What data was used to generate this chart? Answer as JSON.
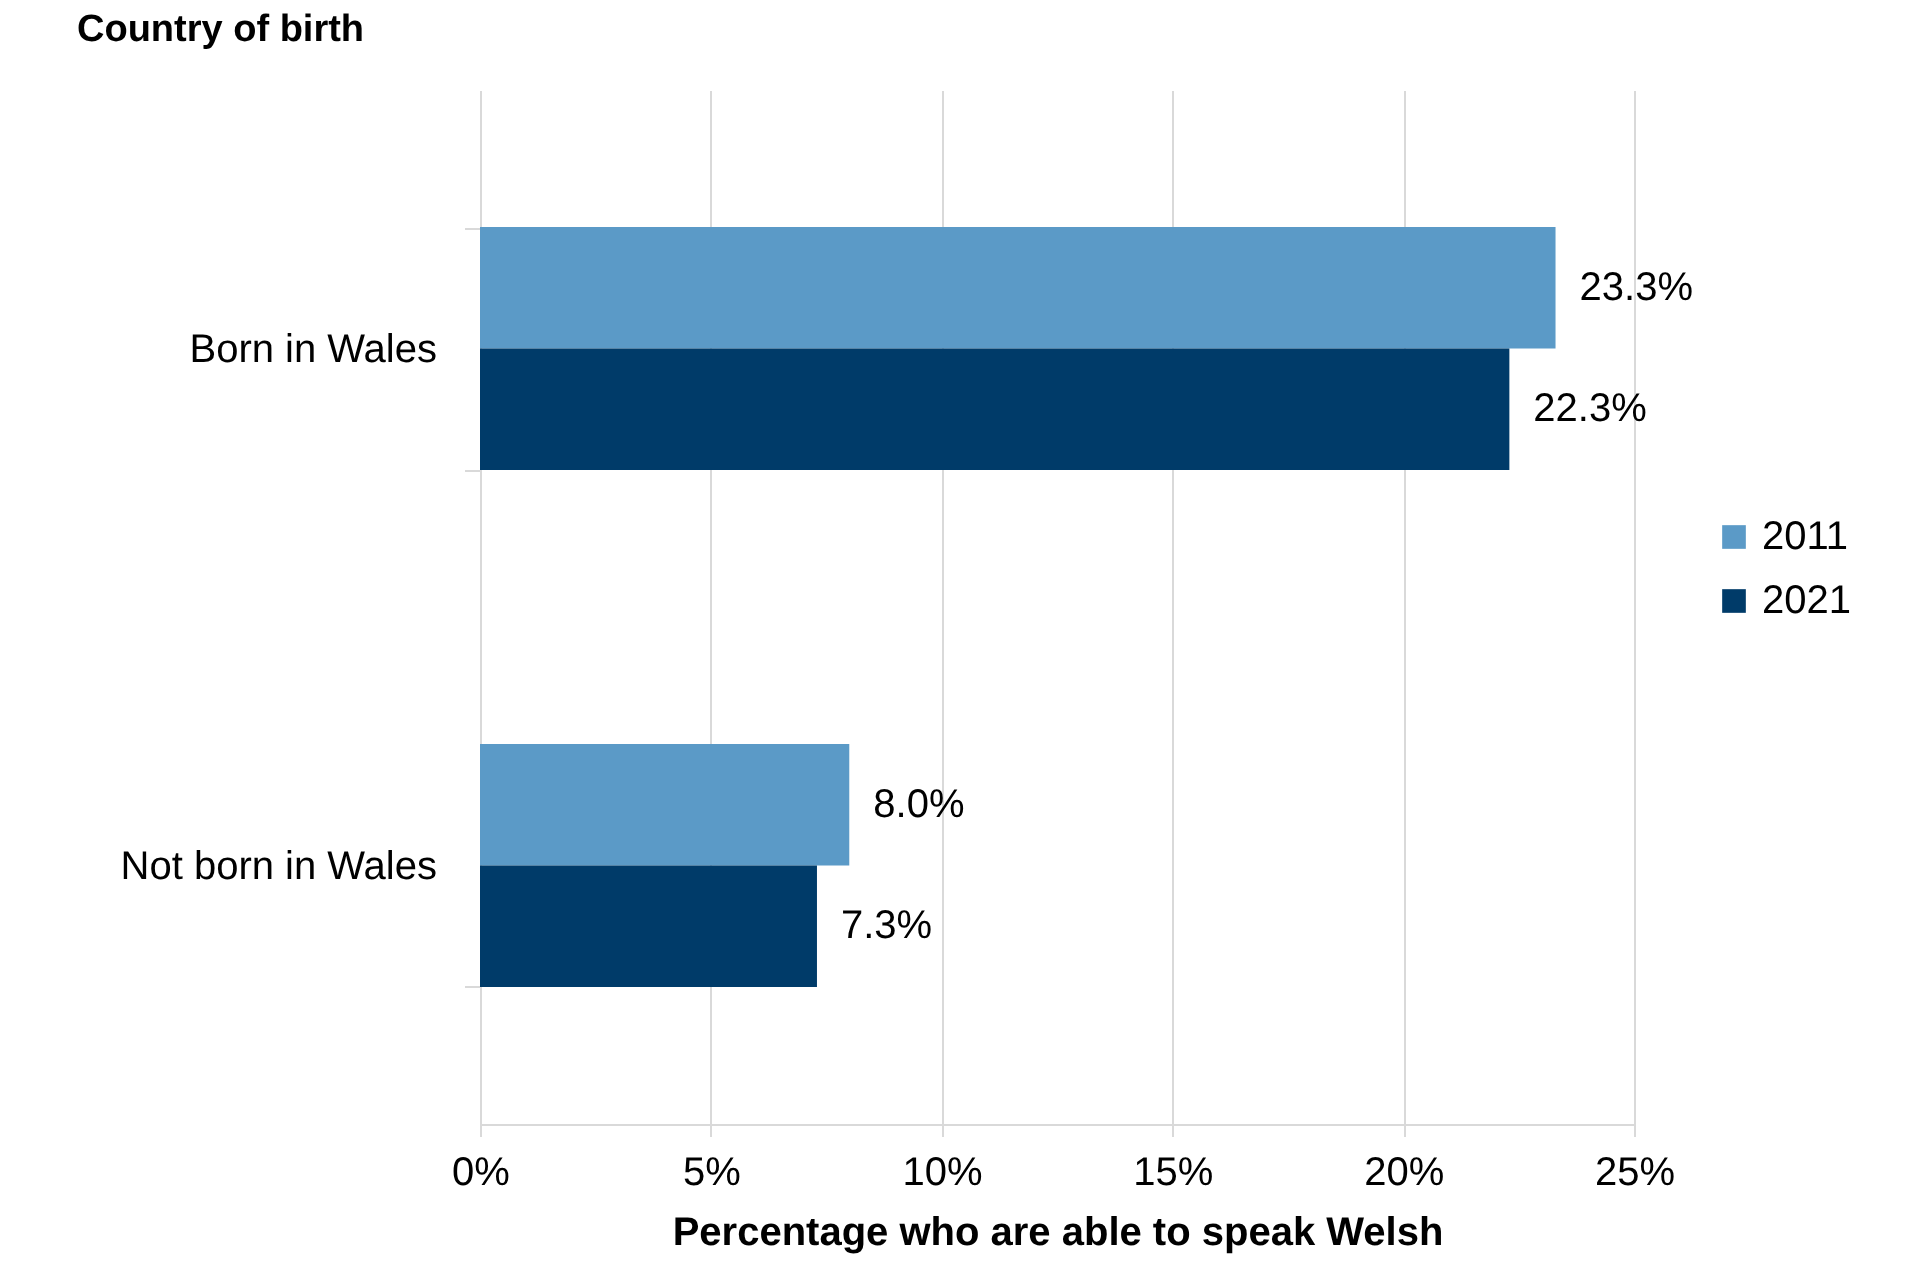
{
  "chart_data": {
    "type": "bar",
    "orientation": "horizontal",
    "ylabel": "Country of birth",
    "xlabel": "Percentage who are able to speak Welsh",
    "categories": [
      "Born in Wales",
      "Not born in Wales"
    ],
    "series": [
      {
        "name": "2011",
        "color": "#5b9ac7",
        "values": [
          23.3,
          8.0
        ],
        "value_labels": [
          "23.3%",
          "8.0%"
        ]
      },
      {
        "name": "2021",
        "color": "#003b69",
        "values": [
          22.3,
          7.3
        ],
        "value_labels": [
          "22.3%",
          "7.3%"
        ]
      }
    ],
    "xlim": [
      0,
      25
    ],
    "xticks": [
      {
        "value": 0,
        "label": "0%"
      },
      {
        "value": 5,
        "label": "5%"
      },
      {
        "value": 10,
        "label": "10%"
      },
      {
        "value": 15,
        "label": "15%"
      },
      {
        "value": 20,
        "label": "20%"
      },
      {
        "value": 25,
        "label": "25%"
      }
    ],
    "grid": "x",
    "legend": "right"
  }
}
